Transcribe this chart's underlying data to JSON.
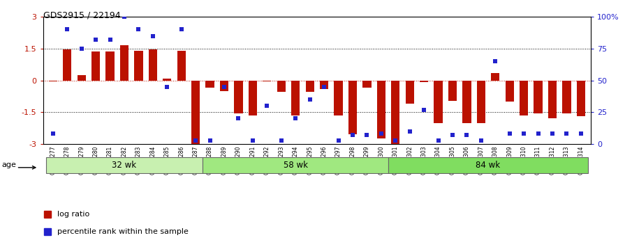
{
  "title": "GDS2915 / 22194",
  "samples": [
    "GSM97277",
    "GSM97278",
    "GSM97279",
    "GSM97280",
    "GSM97281",
    "GSM97282",
    "GSM97283",
    "GSM97284",
    "GSM97285",
    "GSM97286",
    "GSM97287",
    "GSM97288",
    "GSM97289",
    "GSM97290",
    "GSM97291",
    "GSM97292",
    "GSM97293",
    "GSM97294",
    "GSM97295",
    "GSM97296",
    "GSM97297",
    "GSM97298",
    "GSM97299",
    "GSM97300",
    "GSM97301",
    "GSM97302",
    "GSM97303",
    "GSM97304",
    "GSM97305",
    "GSM97306",
    "GSM97307",
    "GSM97308",
    "GSM97309",
    "GSM97310",
    "GSM97311",
    "GSM97312",
    "GSM97313",
    "GSM97314"
  ],
  "log_ratio": [
    -0.05,
    1.45,
    0.25,
    1.35,
    1.35,
    1.65,
    1.4,
    1.45,
    0.1,
    1.4,
    -3.0,
    -0.35,
    -0.5,
    -1.55,
    -1.65,
    -0.05,
    -0.55,
    -1.65,
    -0.55,
    -0.4,
    -1.65,
    -2.55,
    -0.35,
    -2.75,
    -3.0,
    -1.1,
    -0.07,
    -2.0,
    -0.95,
    -2.0,
    -2.0,
    0.35,
    -1.0,
    -1.65,
    -1.55,
    -1.8,
    -1.55,
    -1.7
  ],
  "percentile": [
    8,
    90,
    75,
    82,
    82,
    100,
    90,
    85,
    45,
    90,
    3,
    3,
    45,
    20,
    3,
    30,
    3,
    20,
    35,
    45,
    3,
    7,
    7,
    8,
    3,
    10,
    27,
    3,
    7,
    7,
    3,
    65,
    8,
    8,
    8,
    8,
    8,
    8
  ],
  "groups": [
    {
      "label": "32 wk",
      "start": 0,
      "end": 11
    },
    {
      "label": "58 wk",
      "start": 11,
      "end": 24
    },
    {
      "label": "84 wk",
      "start": 24,
      "end": 38
    }
  ],
  "group_colors": [
    "#c8f0b0",
    "#a0e880",
    "#80dd60"
  ],
  "bar_color": "#bb1100",
  "dot_color": "#2222cc",
  "ylim_left": [
    -3.0,
    3.0
  ],
  "ylim_right": [
    0,
    100
  ],
  "yticks_left": [
    -3,
    -1.5,
    0,
    1.5,
    3
  ],
  "ytick_labels_left": [
    "-3",
    "-1.5",
    "0",
    "1.5",
    "3"
  ],
  "yticks_right_vals": [
    0,
    25,
    50,
    75,
    100
  ],
  "ytick_labels_right": [
    "0",
    "25",
    "50",
    "75",
    "100%"
  ],
  "hlines": [
    -1.5,
    0,
    1.5
  ],
  "age_label": "age",
  "legend_log": "log ratio",
  "legend_pct": "percentile rank within the sample"
}
